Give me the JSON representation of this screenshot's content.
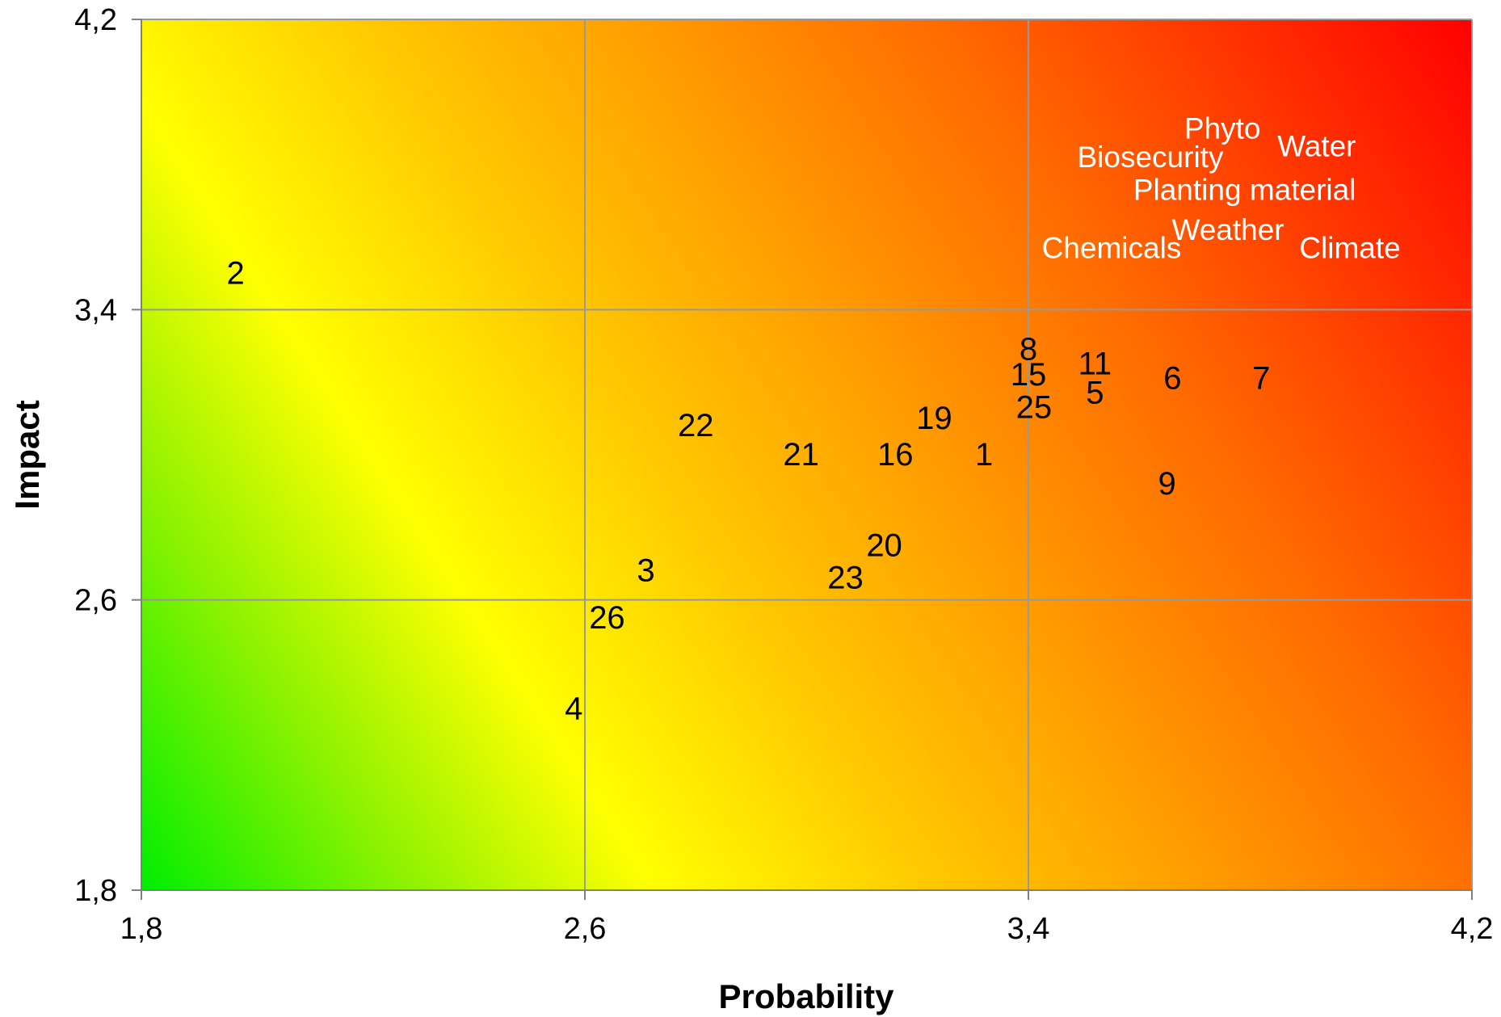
{
  "chart_data": {
    "type": "scatter",
    "title": "",
    "xlabel": "Probability",
    "ylabel": "Impact",
    "xlim": [
      1.8,
      4.2
    ],
    "ylim": [
      1.8,
      4.2
    ],
    "xticks": [
      "1,8",
      "2,6",
      "3,4",
      "4,2"
    ],
    "yticks": [
      "1,8",
      "2,6",
      "3,4",
      "4,2"
    ],
    "grid": true,
    "background": "heatmap gradient from green (low probability, low impact) through yellow and orange to red (high probability, high impact)",
    "colors": {
      "green": "#00ee00",
      "yellow": "#ffff00",
      "orange": "#ffa000",
      "red": "#ff0000",
      "grid": "#999999",
      "number_labels": "#000000",
      "category_labels": "#ffffff"
    },
    "points": [
      {
        "label": "2",
        "x": 1.97,
        "y": 3.5
      },
      {
        "label": "22",
        "x": 2.8,
        "y": 3.08
      },
      {
        "label": "21",
        "x": 2.99,
        "y": 3.0
      },
      {
        "label": "16",
        "x": 3.16,
        "y": 3.0
      },
      {
        "label": "19",
        "x": 3.23,
        "y": 3.1
      },
      {
        "label": "1",
        "x": 3.32,
        "y": 3.0
      },
      {
        "label": "8",
        "x": 3.4,
        "y": 3.29
      },
      {
        "label": "15",
        "x": 3.4,
        "y": 3.22
      },
      {
        "label": "25",
        "x": 3.41,
        "y": 3.13
      },
      {
        "label": "11",
        "x": 3.52,
        "y": 3.25
      },
      {
        "label": "5",
        "x": 3.52,
        "y": 3.17
      },
      {
        "label": "6",
        "x": 3.66,
        "y": 3.21
      },
      {
        "label": "7",
        "x": 3.82,
        "y": 3.21
      },
      {
        "label": "9",
        "x": 3.65,
        "y": 2.92
      },
      {
        "label": "20",
        "x": 3.14,
        "y": 2.75
      },
      {
        "label": "23",
        "x": 3.07,
        "y": 2.66
      },
      {
        "label": "3",
        "x": 2.71,
        "y": 2.68
      },
      {
        "label": "26",
        "x": 2.64,
        "y": 2.55
      },
      {
        "label": "4",
        "x": 2.58,
        "y": 2.3
      },
      {
        "label": "Phyto",
        "x": 3.75,
        "y": 3.9
      },
      {
        "label": "Water",
        "x": 3.92,
        "y": 3.85
      },
      {
        "label": "Biosecurity",
        "x": 3.62,
        "y": 3.82
      },
      {
        "label": "Planting material",
        "x": 3.79,
        "y": 3.73
      },
      {
        "label": "Weather",
        "x": 3.76,
        "y": 3.62
      },
      {
        "label": "Chemicals",
        "x": 3.55,
        "y": 3.57
      },
      {
        "label": "Climate",
        "x": 3.98,
        "y": 3.57
      }
    ]
  }
}
